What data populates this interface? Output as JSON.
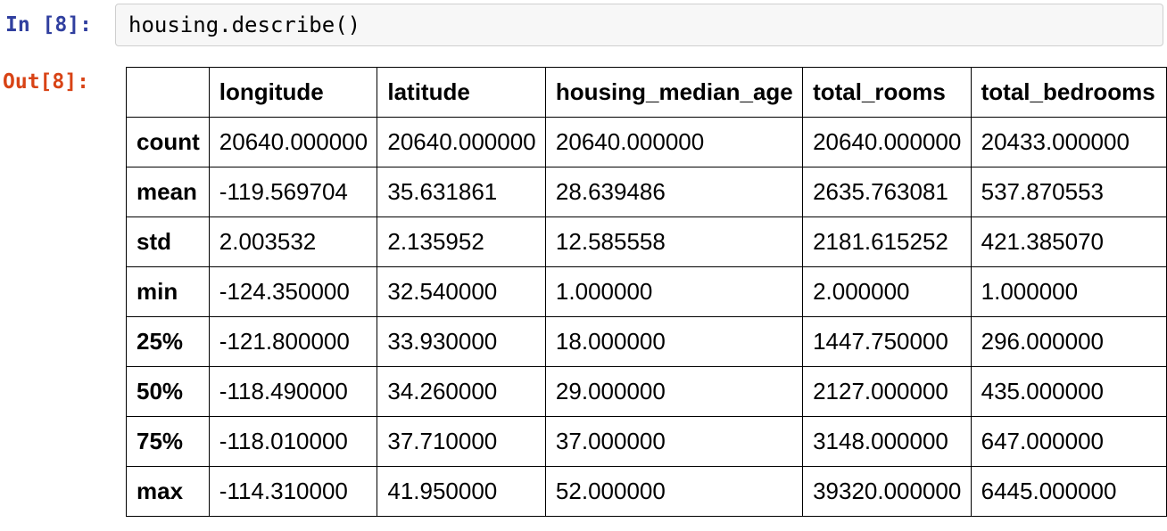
{
  "notebook": {
    "input_cell": {
      "prompt": "In [8]:",
      "code": "housing.describe()"
    },
    "output_cell": {
      "prompt": "Out[8]:"
    },
    "colors": {
      "in_prompt": "#303F9F",
      "out_prompt": "#D84315",
      "code_bg": "#F7F7F7",
      "code_border": "#CFCFCF",
      "table_border": "#000000"
    },
    "table": {
      "columns": [
        "",
        "longitude",
        "latitude",
        "housing_median_age",
        "total_rooms",
        "total_bedrooms"
      ],
      "rows": [
        {
          "label": "count",
          "values": [
            "20640.000000",
            "20640.000000",
            "20640.000000",
            "20640.000000",
            "20433.000000"
          ]
        },
        {
          "label": "mean",
          "values": [
            "-119.569704",
            "35.631861",
            "28.639486",
            "2635.763081",
            "537.870553"
          ]
        },
        {
          "label": "std",
          "values": [
            "2.003532",
            "2.135952",
            "12.585558",
            "2181.615252",
            "421.385070"
          ]
        },
        {
          "label": "min",
          "values": [
            "-124.350000",
            "32.540000",
            "1.000000",
            "2.000000",
            "1.000000"
          ]
        },
        {
          "label": "25%",
          "values": [
            "-121.800000",
            "33.930000",
            "18.000000",
            "1447.750000",
            "296.000000"
          ]
        },
        {
          "label": "50%",
          "values": [
            "-118.490000",
            "34.260000",
            "29.000000",
            "2127.000000",
            "435.000000"
          ]
        },
        {
          "label": "75%",
          "values": [
            "-118.010000",
            "37.710000",
            "37.000000",
            "3148.000000",
            "647.000000"
          ]
        },
        {
          "label": "max",
          "values": [
            "-114.310000",
            "41.950000",
            "52.000000",
            "39320.000000",
            "6445.000000"
          ]
        }
      ]
    }
  }
}
